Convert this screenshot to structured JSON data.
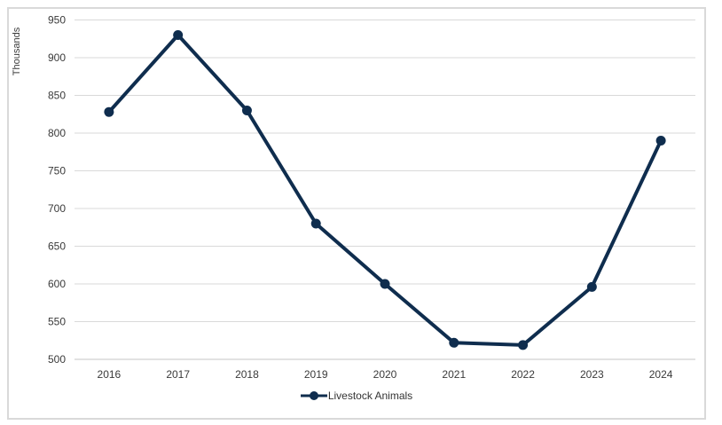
{
  "chart_data": {
    "type": "line",
    "title": "",
    "xlabel": "",
    "ylabel": "Thousands",
    "categories": [
      "2016",
      "2017",
      "2018",
      "2019",
      "2020",
      "2021",
      "2022",
      "2023",
      "2024"
    ],
    "series": [
      {
        "name": "Livestock Animals",
        "values": [
          828,
          930,
          830,
          680,
          600,
          522,
          519,
          596,
          790
        ]
      }
    ],
    "ylim": [
      500,
      950
    ],
    "yticks": [
      950,
      900,
      850,
      800,
      750,
      700,
      650,
      600,
      550,
      500
    ],
    "ytick_unit": "Thousands",
    "grid": "horizontal",
    "legend_position": "bottom-center",
    "marker_style": "filled-circle",
    "colors": {
      "line": "#0f2d4e",
      "marker": "#0f2d4e",
      "gridline": "#d9d9d9",
      "axis_line": "#c6c6c6",
      "tick_text": "#3a3a3a",
      "frame_border": "#d9d9d9",
      "background": "#ffffff"
    }
  }
}
